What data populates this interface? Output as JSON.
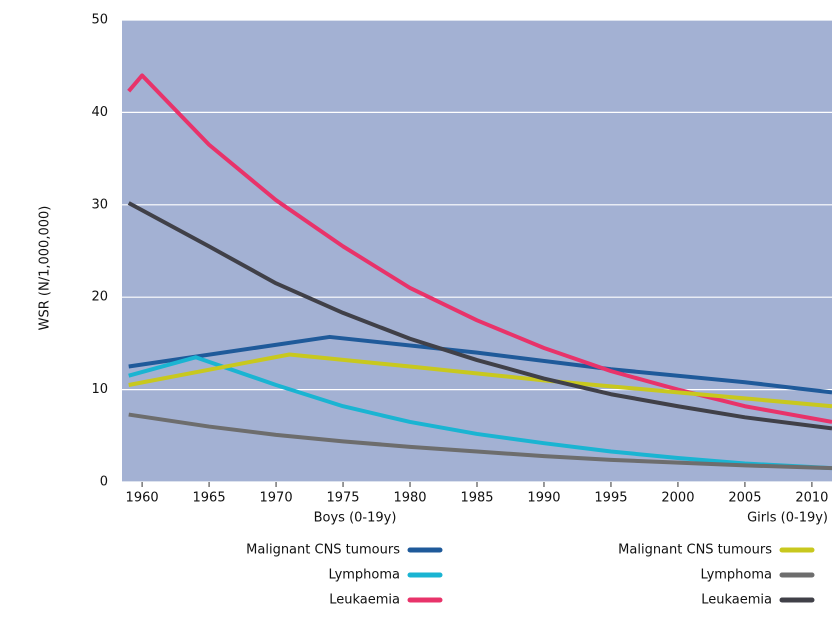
{
  "chart_data": {
    "type": "line",
    "y_label": "WSR (N/1,000,000)",
    "xlim": [
      1958.5,
      2011.5
    ],
    "xticks": [
      1960,
      1965,
      1970,
      1975,
      1980,
      1985,
      1990,
      1995,
      2000,
      2005,
      2010
    ],
    "ylim": [
      0,
      50
    ],
    "yticks": [
      0,
      10,
      20,
      30,
      40,
      50
    ],
    "grid": true,
    "background": "#a3b1d3",
    "legend_groups": [
      "Boys (0-19y)",
      "Girls (0-19y)"
    ],
    "series": [
      {
        "name": "Malignant CNS tumours",
        "group": 0,
        "color": "#1f5a9a",
        "x": [
          1959,
          1974,
          1985,
          1995,
          2005,
          2011.5
        ],
        "values": [
          12.5,
          15.7,
          14,
          12.2,
          10.8,
          9.7
        ]
      },
      {
        "name": "Lymphoma",
        "group": 0,
        "color": "#1ab4d2",
        "x": [
          1959,
          1964,
          1970,
          1975,
          1980,
          1985,
          1990,
          1995,
          2000,
          2005,
          2011.5
        ],
        "values": [
          11.5,
          13.5,
          10.5,
          8.2,
          6.5,
          5.2,
          4.2,
          3.3,
          2.6,
          2,
          1.5
        ]
      },
      {
        "name": "Leukaemia",
        "group": 0,
        "color": "#e8336a",
        "x": [
          1959,
          1960,
          1965,
          1970,
          1975,
          1980,
          1985,
          1990,
          1995,
          2000,
          2005,
          2011.5
        ],
        "values": [
          42.3,
          44,
          36.5,
          30.5,
          25.5,
          21,
          17.5,
          14.5,
          12,
          10,
          8.2,
          6.5
        ]
      },
      {
        "name": "Malignant CNS tumours",
        "group": 1,
        "color": "#c8c81e",
        "x": [
          1959,
          1971,
          1980,
          1990,
          2000,
          2011.5
        ],
        "values": [
          10.5,
          13.8,
          12.5,
          11,
          9.7,
          8.2
        ]
      },
      {
        "name": "Lymphoma",
        "group": 1,
        "color": "#6d6d6d",
        "x": [
          1959,
          1965,
          1970,
          1975,
          1980,
          1985,
          1990,
          1995,
          2000,
          2005,
          2011.5
        ],
        "values": [
          7.3,
          6,
          5.1,
          4.4,
          3.8,
          3.3,
          2.8,
          2.4,
          2.1,
          1.8,
          1.5
        ]
      },
      {
        "name": "Leukaemia",
        "group": 1,
        "color": "#404048",
        "x": [
          1959,
          1965,
          1970,
          1975,
          1980,
          1985,
          1990,
          1995,
          2000,
          2005,
          2011.5
        ],
        "values": [
          30.2,
          25.5,
          21.5,
          18.3,
          15.5,
          13.2,
          11.2,
          9.5,
          8.2,
          7,
          5.8
        ]
      }
    ]
  }
}
